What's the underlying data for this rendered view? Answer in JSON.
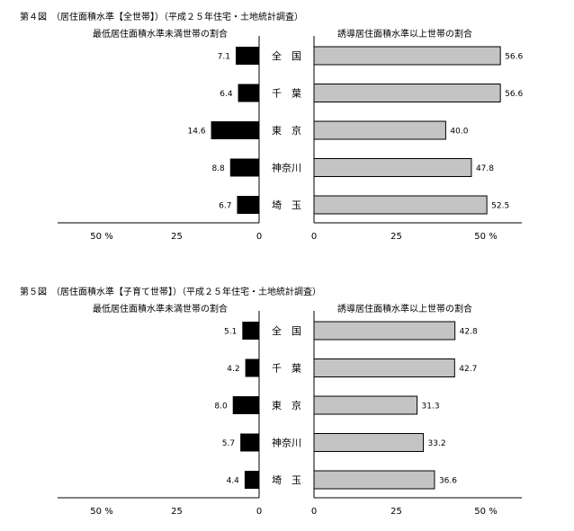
{
  "chart_data": [
    {
      "type": "bar",
      "title": "第４図　（居住面積水準【全世帯】）（平成２５年住宅・土地統計調査）",
      "left_title": "最低居住面積水準未満世帯の割合",
      "right_title": "誘導居住面積水準以上世帯の割合",
      "categories": [
        "全　国",
        "千　葉",
        "東　京",
        "神奈川",
        "埼　玉"
      ],
      "series": [
        {
          "name": "最低居住面積水準未満世帯の割合",
          "values": [
            7.1,
            6.4,
            14.6,
            8.8,
            6.7
          ],
          "labels": [
            "7.1",
            "6.4",
            "14.6",
            "8.8",
            "6.7"
          ]
        },
        {
          "name": "誘導居住面積水準以上世帯の割合",
          "values": [
            56.6,
            56.6,
            40.0,
            47.8,
            52.5
          ],
          "labels": [
            "56.6",
            "56.6",
            "40.0",
            "47.8",
            "52.5"
          ]
        }
      ],
      "left_ticks": [
        "50 %",
        "25",
        "0"
      ],
      "right_ticks": [
        "0",
        "25",
        "50 %"
      ],
      "xlim": [
        0,
        60
      ],
      "colors": {
        "left": "#000000",
        "right": "#c4c4c4"
      }
    },
    {
      "type": "bar",
      "title": "第５図　（居住面積水準【子育て世帯】）（平成２５年住宅・土地統計調査）",
      "left_title": "最低居住面積水準未満世帯の割合",
      "right_title": "誘導居住面積水準以上世帯の割合",
      "categories": [
        "全　国",
        "千　葉",
        "東　京",
        "神奈川",
        "埼　玉"
      ],
      "series": [
        {
          "name": "最低居住面積水準未満世帯の割合",
          "values": [
            5.1,
            4.2,
            8.0,
            5.7,
            4.4
          ],
          "labels": [
            "5.1",
            "4.2",
            "8.0",
            "5.7",
            "4.4"
          ]
        },
        {
          "name": "誘導居住面積水準以上世帯の割合",
          "values": [
            42.8,
            42.7,
            31.3,
            33.2,
            36.6
          ],
          "labels": [
            "42.8",
            "42.7",
            "31.3",
            "33.2",
            "36.6"
          ]
        }
      ],
      "left_ticks": [
        "50 %",
        "25",
        "0"
      ],
      "right_ticks": [
        "0",
        "25",
        "50 %"
      ],
      "xlim": [
        0,
        60
      ],
      "colors": {
        "left": "#000000",
        "right": "#c4c4c4"
      }
    }
  ]
}
